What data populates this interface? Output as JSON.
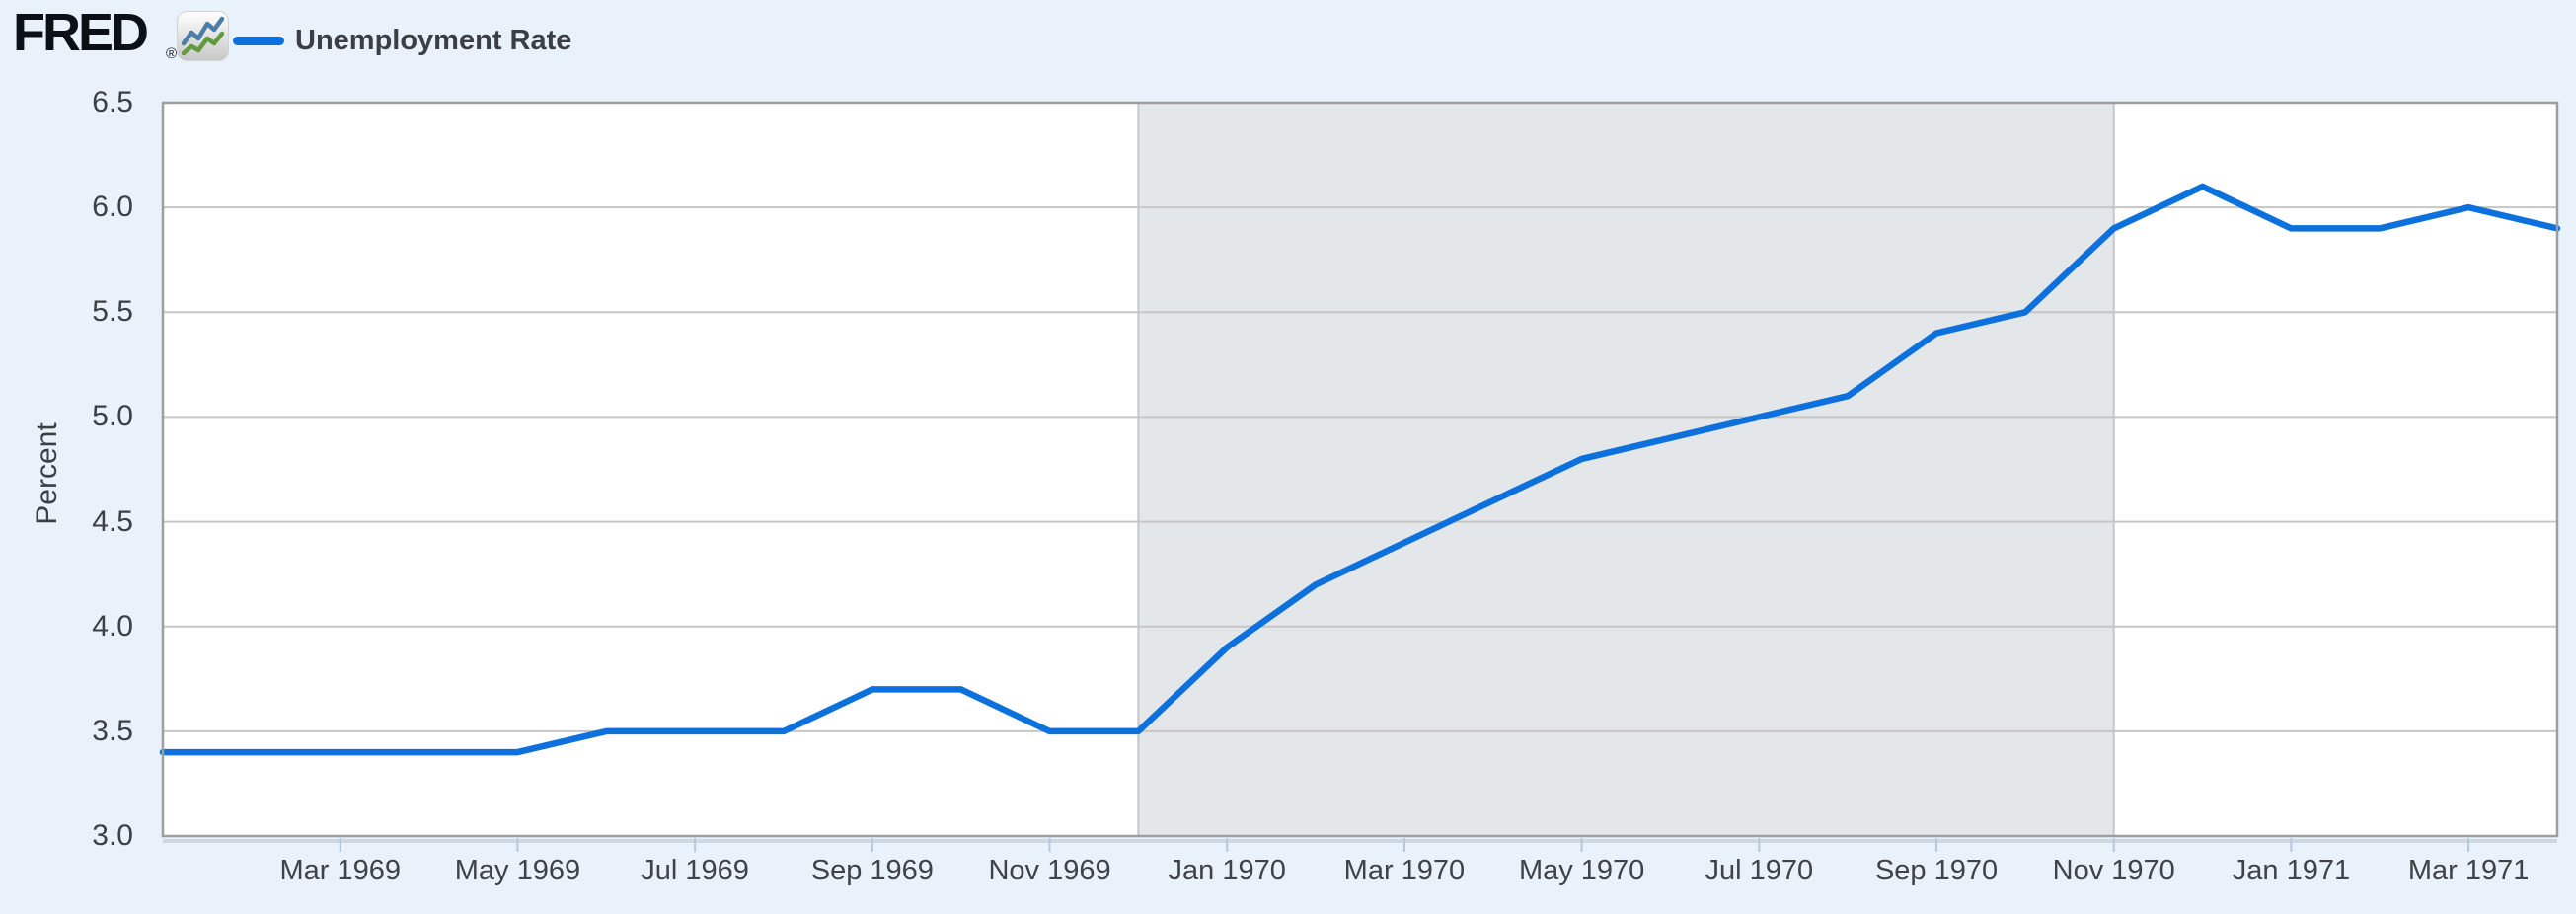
{
  "header": {
    "logo_text": "FRED",
    "registered_mark": "®",
    "logo_icon": "fred-graph-icon",
    "legend": {
      "label": "Unemployment Rate"
    }
  },
  "colors": {
    "page_background": "#e9f1fb",
    "plot_background": "#ffffff",
    "series_line": "#0d71dd",
    "recession_band": "#e3e7ea",
    "recession_band_edge": "#c3c7ca",
    "gridline": "#c6c6c6",
    "plot_border": "#9e9e9e",
    "plot_bottom_shadow": "#cdd7e3",
    "tick_mark": "#b7c6dc",
    "axis_text": "#3f4347",
    "logo_icon_blue": "#4d7ea8",
    "logo_icon_green": "#619a3f"
  },
  "chart_data": {
    "type": "line",
    "title": "",
    "ylabel": "Percent",
    "xlabel": "",
    "ylim": [
      3.0,
      6.5
    ],
    "grid": "horizontal",
    "legend_position": "top-left",
    "y_tick_labels": [
      "3.0",
      "3.5",
      "4.0",
      "4.5",
      "5.0",
      "5.5",
      "6.0",
      "6.5"
    ],
    "x_tick_labels": [
      "Mar 1969",
      "May 1969",
      "Jul 1969",
      "Sep 1969",
      "Nov 1969",
      "Jan 1970",
      "Mar 1970",
      "May 1970",
      "Jul 1970",
      "Sep 1970",
      "Nov 1970",
      "Jan 1971",
      "Mar 1971"
    ],
    "recession_band": {
      "start": "Dec 1969",
      "end": "Nov 1970"
    },
    "series": [
      {
        "name": "Unemployment Rate",
        "color": "#0d71dd",
        "x": [
          "Jan 1969",
          "Feb 1969",
          "Mar 1969",
          "Apr 1969",
          "May 1969",
          "Jun 1969",
          "Jul 1969",
          "Aug 1969",
          "Sep 1969",
          "Oct 1969",
          "Nov 1969",
          "Dec 1969",
          "Jan 1970",
          "Feb 1970",
          "Mar 1970",
          "Apr 1970",
          "May 1970",
          "Jun 1970",
          "Jul 1970",
          "Aug 1970",
          "Sep 1970",
          "Oct 1970",
          "Nov 1970",
          "Dec 1970",
          "Jan 1971",
          "Feb 1971",
          "Mar 1971",
          "Apr 1971"
        ],
        "values": [
          3.4,
          3.4,
          3.4,
          3.4,
          3.4,
          3.5,
          3.5,
          3.5,
          3.7,
          3.7,
          3.5,
          3.5,
          3.9,
          4.2,
          4.4,
          4.6,
          4.8,
          4.9,
          5.0,
          5.1,
          5.4,
          5.5,
          5.9,
          6.1,
          5.9,
          5.9,
          6.0,
          5.9
        ]
      }
    ]
  }
}
